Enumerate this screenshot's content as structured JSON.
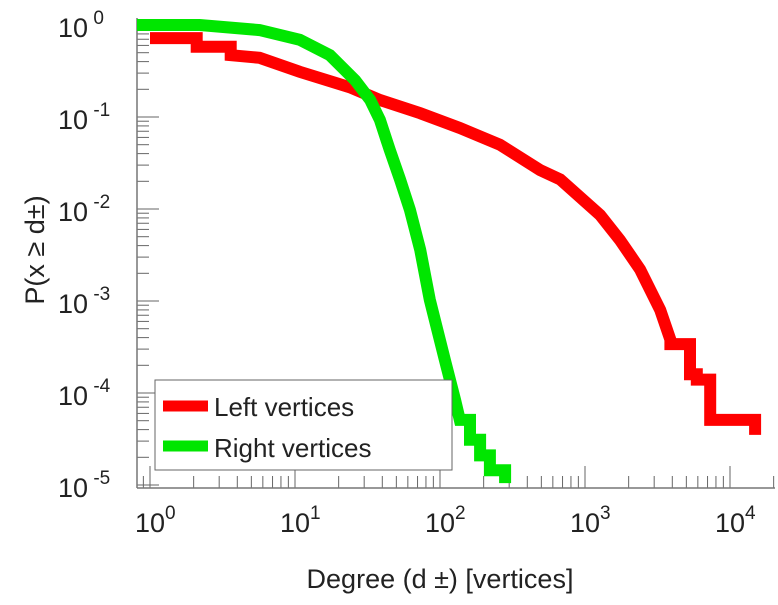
{
  "chart_data": {
    "type": "line",
    "title": "",
    "xlabel": "Degree (d ±) [vertices]",
    "ylabel": "P(x ≥ d±)",
    "xscale": "log",
    "yscale": "log",
    "xlim": [
      0.75,
      20000
    ],
    "ylim": [
      1e-05,
      1.1
    ],
    "xticks": [
      {
        "base": "10",
        "exp": "0"
      },
      {
        "base": "10",
        "exp": "1"
      },
      {
        "base": "10",
        "exp": "2"
      },
      {
        "base": "10",
        "exp": "3"
      },
      {
        "base": "10",
        "exp": "4"
      }
    ],
    "yticks": [
      {
        "base": "10",
        "exp": "0"
      },
      {
        "base": "10",
        "exp": "-1"
      },
      {
        "base": "10",
        "exp": "-2"
      },
      {
        "base": "10",
        "exp": "-3"
      },
      {
        "base": "10",
        "exp": "-4"
      },
      {
        "base": "10",
        "exp": "-5"
      }
    ],
    "legend_position": "bottom-left",
    "series": [
      {
        "name": "Left vertices",
        "color": "#ff0000",
        "x": [
          1,
          2.1,
          2.1,
          3.6,
          3.6,
          5.7,
          10.8,
          24,
          38.5,
          73,
          137,
          259,
          490,
          675,
          1270,
          1740,
          2400,
          3300,
          3880,
          3880,
          5300,
          5300,
          5900,
          5900,
          7300,
          7300,
          7800,
          7800,
          14900,
          14900
        ],
        "y": [
          0.72,
          0.72,
          0.58,
          0.58,
          0.47,
          0.44,
          0.31,
          0.21,
          0.153,
          0.11,
          0.076,
          0.05,
          0.0265,
          0.021,
          0.0086,
          0.0046,
          0.0022,
          0.0008,
          0.00038,
          0.00034,
          0.00034,
          0.00016,
          0.00016,
          0.00014,
          0.00014,
          5.1e-05,
          5.1e-05,
          5.1e-05,
          5.1e-05,
          3.5e-05
        ]
      },
      {
        "name": "Right vertices",
        "color": "#00e600",
        "x": [
          0.8,
          2.2,
          5.7,
          10.8,
          17.4,
          26,
          33,
          38.5,
          45,
          53,
          62,
          73,
          85,
          108,
          127,
          137,
          137,
          161,
          161,
          189,
          189,
          221,
          221,
          281,
          281
        ],
        "y": [
          1.0,
          1.0,
          0.88,
          0.69,
          0.47,
          0.25,
          0.153,
          0.093,
          0.044,
          0.021,
          0.0098,
          0.0036,
          0.00103,
          0.00023,
          8.4e-05,
          5.1e-05,
          5.1e-05,
          5.1e-05,
          3.1e-05,
          3.1e-05,
          2.1e-05,
          2.1e-05,
          1.45e-05,
          1.45e-05,
          1.05e-05
        ]
      }
    ]
  }
}
